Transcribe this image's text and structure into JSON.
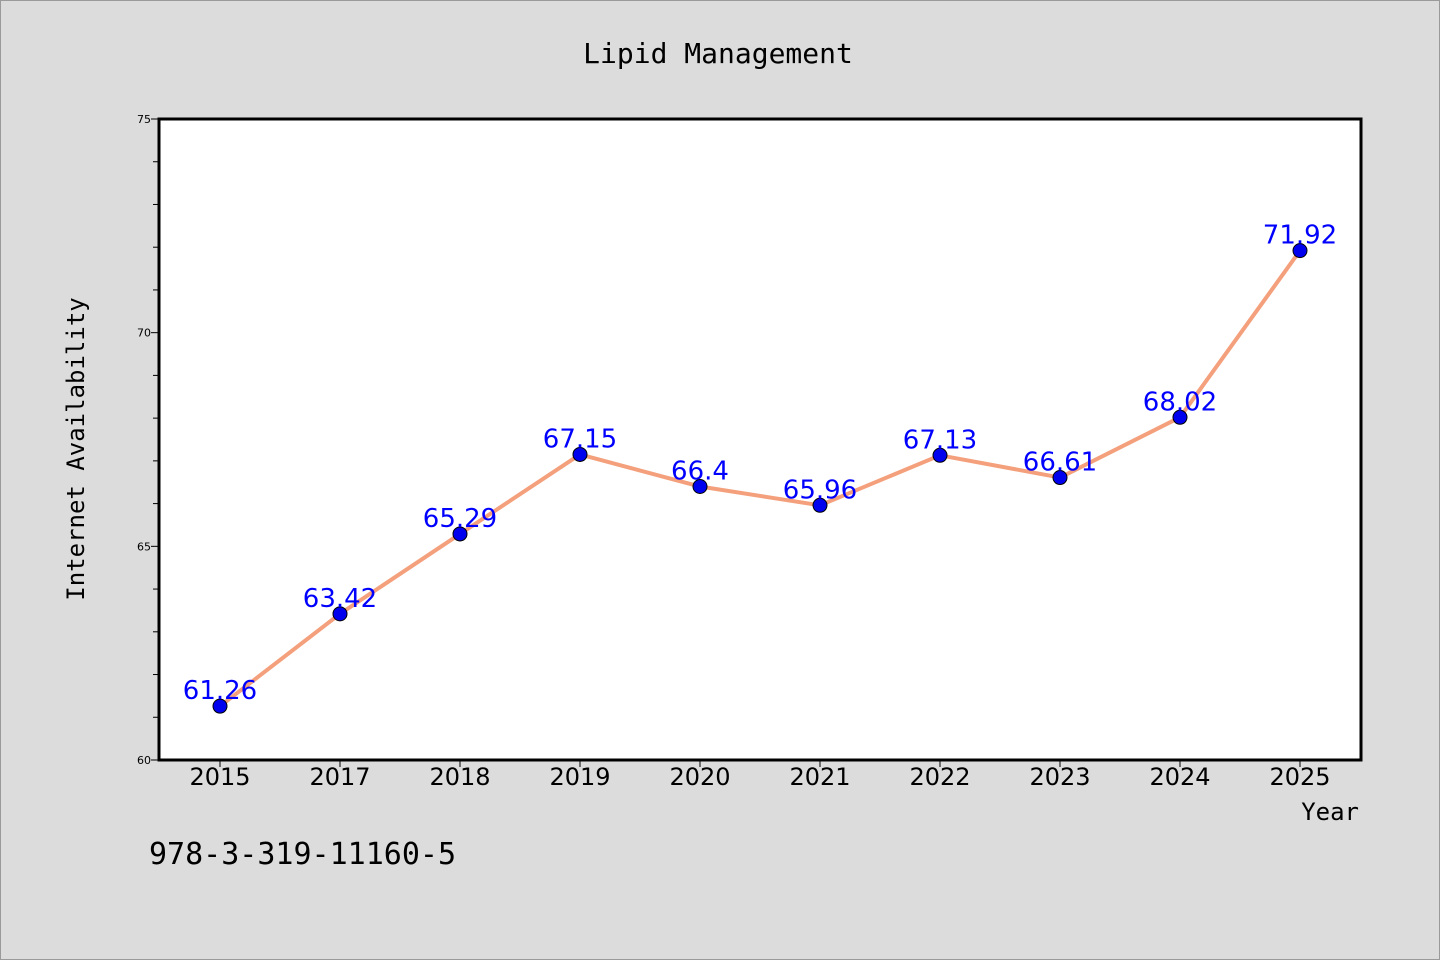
{
  "chart_data": {
    "type": "line",
    "title": "Lipid Management",
    "xlabel": "Year",
    "ylabel": "Internet Availability",
    "categories": [
      "2015",
      "2017",
      "2018",
      "2019",
      "2020",
      "2021",
      "2022",
      "2023",
      "2024",
      "2025"
    ],
    "series": [
      {
        "values": [
          61.26,
          63.42,
          65.29,
          67.15,
          66.4,
          65.96,
          67.13,
          66.61,
          68.02,
          71.92
        ],
        "line_color": "#f4a07c",
        "marker_color": "#0000ee"
      }
    ],
    "data_labels": [
      "61.26",
      "63.42",
      "65.29",
      "67.15",
      "66.4",
      "65.96",
      "67.13",
      "66.61",
      "68.02",
      "71.92"
    ],
    "data_label_color": "#0000ff",
    "ylim": [
      60,
      75
    ],
    "yticks": [
      60,
      65,
      70,
      75
    ],
    "grid": false,
    "legend": "none"
  },
  "footnote": "978-3-319-11160-5"
}
